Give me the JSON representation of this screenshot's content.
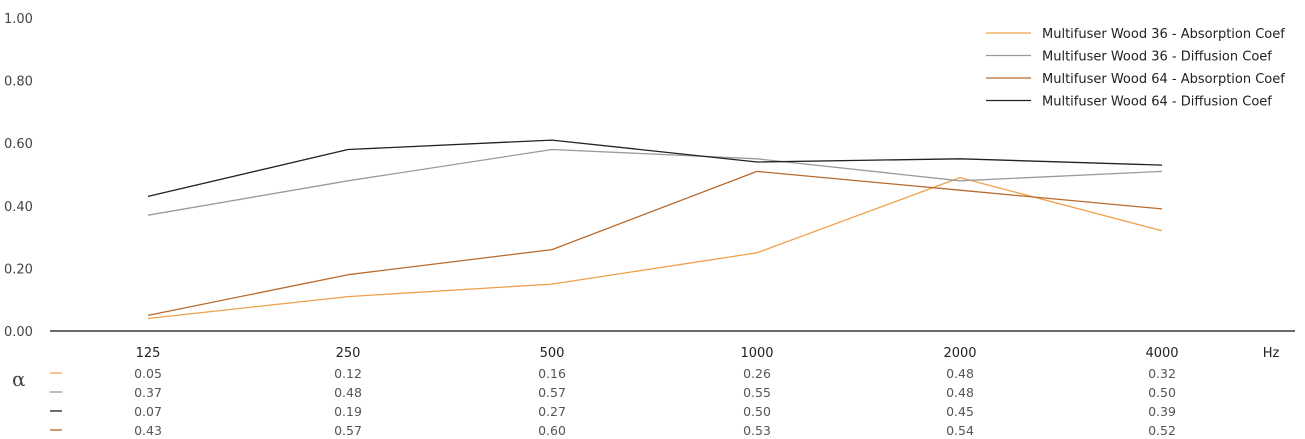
{
  "chart_data": {
    "type": "line",
    "x": [
      "125",
      "250",
      "500",
      "1000",
      "2000",
      "4000"
    ],
    "x_unit": "Hz",
    "ylim": [
      0,
      1
    ],
    "yticks": [
      "0.00",
      "0.20",
      "0.40",
      "0.60",
      "0.80",
      "1.00"
    ],
    "grid": false,
    "legend_position": "top-right",
    "table_symbol": "α",
    "series": [
      {
        "name": "Multifuser Wood 36 - Absorption Coef",
        "color": "#f0a04b",
        "values": [
          0.04,
          0.11,
          0.15,
          0.25,
          0.49,
          0.32
        ]
      },
      {
        "name": "Multifuser Wood 36 - Diffusion Coef",
        "color": "#9a9a9a",
        "values": [
          0.37,
          0.48,
          0.58,
          0.55,
          0.48,
          0.51
        ]
      },
      {
        "name": "Multifuser Wood 64 - Absorption Coef",
        "color": "#b96a2c",
        "values": [
          0.05,
          0.18,
          0.26,
          0.51,
          0.45,
          0.39
        ]
      },
      {
        "name": "Multifuser Wood 64 - Diffusion Coef",
        "color": "#222222",
        "values": [
          0.43,
          0.58,
          0.61,
          0.54,
          0.55,
          0.53
        ]
      }
    ],
    "table": {
      "row_colors": [
        "#f0a04b",
        "#9a9a9a",
        "#222222",
        "#b96a2c"
      ],
      "rows": [
        [
          "0.05",
          "0.12",
          "0.16",
          "0.26",
          "0.48",
          "0.32"
        ],
        [
          "0.37",
          "0.48",
          "0.57",
          "0.55",
          "0.48",
          "0.50"
        ],
        [
          "0.07",
          "0.19",
          "0.27",
          "0.50",
          "0.45",
          "0.39"
        ],
        [
          "0.43",
          "0.57",
          "0.60",
          "0.53",
          "0.54",
          "0.52"
        ]
      ]
    }
  }
}
